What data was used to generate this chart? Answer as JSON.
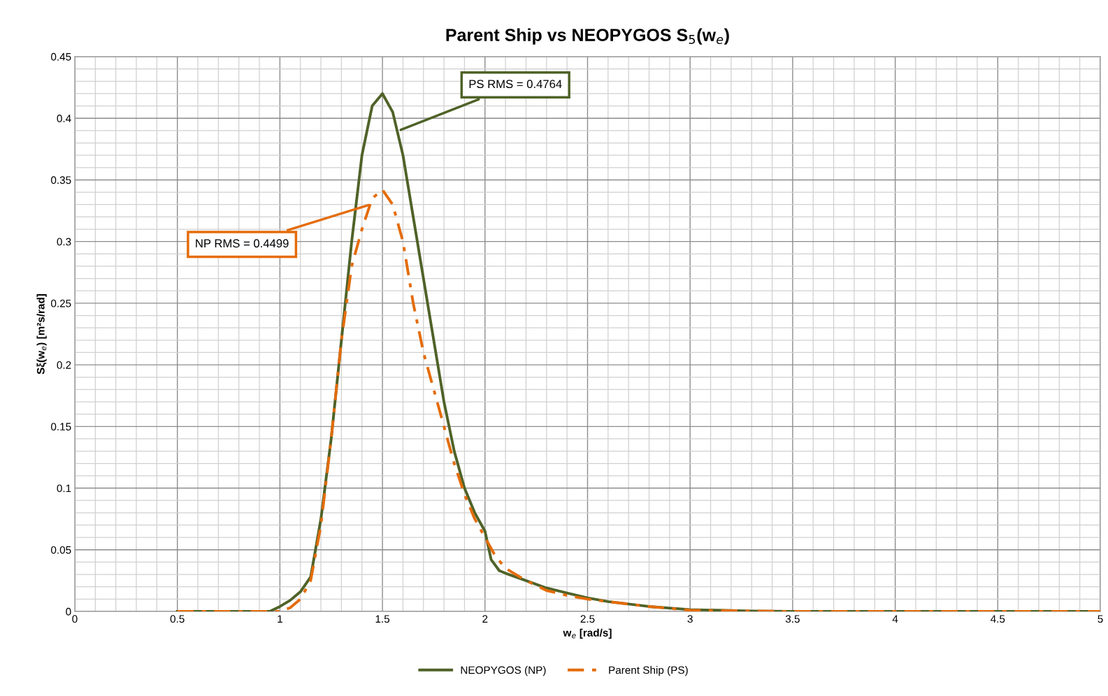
{
  "chart_data": {
    "type": "line",
    "title": "Parent Ship vs NEOPYGOS S$_{5}$(w$_{e}$)",
    "xlabel": "w$_{e}$ [rad/s]",
    "ylabel": "Sξ(w$_{e}$) [m²s/rad]",
    "series": [
      {
        "name": "NEOPYGOS (NP)",
        "color": "#4f6228",
        "line_style": "solid",
        "x": [
          0.5,
          0.7,
          0.95,
          1.0,
          1.05,
          1.1,
          1.15,
          1.2,
          1.25,
          1.3,
          1.35,
          1.4,
          1.45,
          1.5,
          1.55,
          1.6,
          1.65,
          1.7,
          1.75,
          1.8,
          1.85,
          1.9,
          1.95,
          2.0,
          2.03,
          2.07,
          2.1,
          2.2,
          2.3,
          2.4,
          2.5,
          2.6,
          2.8,
          3.0,
          3.3,
          3.5,
          4.0,
          5.0
        ],
        "values": [
          0,
          0,
          0,
          0.004,
          0.009,
          0.016,
          0.028,
          0.075,
          0.14,
          0.22,
          0.3,
          0.37,
          0.41,
          0.42,
          0.405,
          0.37,
          0.32,
          0.27,
          0.22,
          0.17,
          0.13,
          0.1,
          0.08,
          0.065,
          0.042,
          0.033,
          0.031,
          0.025,
          0.019,
          0.015,
          0.011,
          0.008,
          0.004,
          0.0015,
          0.0003,
          0,
          0,
          0
        ]
      },
      {
        "name": "Parent Ship (PS)",
        "color": "#e46c0a",
        "line_style": "dashdot",
        "x": [
          0.5,
          0.7,
          1.0,
          1.05,
          1.1,
          1.15,
          1.2,
          1.25,
          1.3,
          1.35,
          1.4,
          1.45,
          1.5,
          1.55,
          1.6,
          1.65,
          1.7,
          1.75,
          1.8,
          1.85,
          1.9,
          1.95,
          2.0,
          2.05,
          2.1,
          2.2,
          2.3,
          2.4,
          2.5,
          2.6,
          2.8,
          3.0,
          3.5,
          4.0,
          5.0
        ],
        "values": [
          0,
          0,
          0,
          0.003,
          0.01,
          0.025,
          0.07,
          0.14,
          0.22,
          0.28,
          0.31,
          0.335,
          0.342,
          0.33,
          0.3,
          0.25,
          0.21,
          0.18,
          0.15,
          0.12,
          0.095,
          0.075,
          0.06,
          0.045,
          0.035,
          0.025,
          0.017,
          0.013,
          0.01,
          0.008,
          0.004,
          0.001,
          0,
          0,
          0
        ]
      }
    ],
    "annotations": [
      {
        "text": "PS RMS = 0.4764",
        "x": 1.58,
        "y": 0.39
      },
      {
        "text": "NP RMS = 0.4499",
        "x": 1.44,
        "y": 0.33
      }
    ],
    "xlim": [
      0,
      5
    ],
    "xticks": [
      0,
      0.5,
      1,
      1.5,
      2,
      2.5,
      3,
      3.5,
      4,
      4.5,
      5
    ],
    "ylim": [
      0,
      0.45
    ],
    "yticks": [
      0,
      0.05,
      0.1,
      0.15,
      0.2,
      0.25,
      0.3,
      0.35,
      0.4,
      0.45
    ],
    "grid": true,
    "legend": "bottom",
    "marker": "none"
  }
}
